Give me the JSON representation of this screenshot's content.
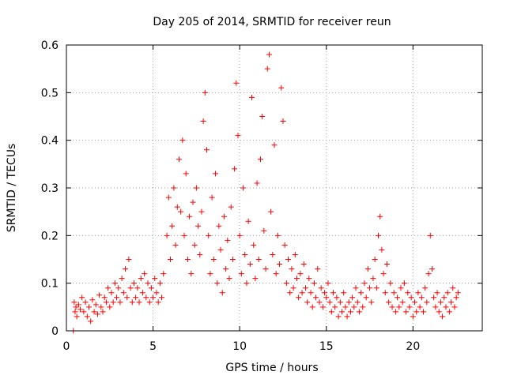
{
  "chart_data": {
    "type": "scatter",
    "title": "Day 205 of 2014, SRMTID for receiver reun",
    "xlabel": "GPS time / hours",
    "ylabel": "SRMTID / TECUs",
    "xlim": [
      0,
      24
    ],
    "ylim": [
      0,
      0.6
    ],
    "xticks": [
      0,
      5,
      10,
      15,
      20
    ],
    "xtick_labels": [
      "0",
      "5",
      "10",
      "15",
      "20"
    ],
    "yticks": [
      0,
      0.1,
      0.2,
      0.3,
      0.4,
      0.5,
      0.6
    ],
    "ytick_labels": [
      "0",
      "0.1",
      "0.2",
      "0.3",
      "0.4",
      "0.5",
      "0.6"
    ],
    "grid": true,
    "marker": "plus",
    "color": "#ff0000",
    "series": [
      {
        "name": "SRMTID",
        "points": [
          [
            0.4,
            0.0
          ],
          [
            0.45,
            0.06
          ],
          [
            0.5,
            0.04
          ],
          [
            0.55,
            0.05
          ],
          [
            0.6,
            0.03
          ],
          [
            0.7,
            0.055
          ],
          [
            0.8,
            0.045
          ],
          [
            0.9,
            0.07
          ],
          [
            1.0,
            0.04
          ],
          [
            1.1,
            0.06
          ],
          [
            1.2,
            0.03
          ],
          [
            1.3,
            0.05
          ],
          [
            1.4,
            0.02
          ],
          [
            1.5,
            0.065
          ],
          [
            1.6,
            0.04
          ],
          [
            1.7,
            0.055
          ],
          [
            1.8,
            0.035
          ],
          [
            1.9,
            0.075
          ],
          [
            2.0,
            0.05
          ],
          [
            2.1,
            0.04
          ],
          [
            2.2,
            0.07
          ],
          [
            2.3,
            0.06
          ],
          [
            2.4,
            0.09
          ],
          [
            2.5,
            0.05
          ],
          [
            2.6,
            0.08
          ],
          [
            2.7,
            0.06
          ],
          [
            2.8,
            0.1
          ],
          [
            2.9,
            0.07
          ],
          [
            3.0,
            0.09
          ],
          [
            3.1,
            0.06
          ],
          [
            3.2,
            0.11
          ],
          [
            3.3,
            0.08
          ],
          [
            3.4,
            0.13
          ],
          [
            3.5,
            0.07
          ],
          [
            3.6,
            0.15
          ],
          [
            3.7,
            0.09
          ],
          [
            3.8,
            0.06
          ],
          [
            3.9,
            0.1
          ],
          [
            4.0,
            0.07
          ],
          [
            4.1,
            0.09
          ],
          [
            4.2,
            0.06
          ],
          [
            4.3,
            0.11
          ],
          [
            4.4,
            0.08
          ],
          [
            4.5,
            0.12
          ],
          [
            4.6,
            0.07
          ],
          [
            4.7,
            0.1
          ],
          [
            4.8,
            0.06
          ],
          [
            4.9,
            0.09
          ],
          [
            5.0,
            0.07
          ],
          [
            5.1,
            0.11
          ],
          [
            5.2,
            0.08
          ],
          [
            5.3,
            0.06
          ],
          [
            5.4,
            0.1
          ],
          [
            5.5,
            0.07
          ],
          [
            5.6,
            0.12
          ],
          [
            5.8,
            0.2
          ],
          [
            5.9,
            0.28
          ],
          [
            6.0,
            0.15
          ],
          [
            6.1,
            0.22
          ],
          [
            6.2,
            0.3
          ],
          [
            6.3,
            0.18
          ],
          [
            6.4,
            0.26
          ],
          [
            6.5,
            0.36
          ],
          [
            6.6,
            0.25
          ],
          [
            6.7,
            0.4
          ],
          [
            6.8,
            0.2
          ],
          [
            6.9,
            0.33
          ],
          [
            7.0,
            0.15
          ],
          [
            7.1,
            0.24
          ],
          [
            7.2,
            0.12
          ],
          [
            7.3,
            0.27
          ],
          [
            7.4,
            0.18
          ],
          [
            7.5,
            0.3
          ],
          [
            7.6,
            0.22
          ],
          [
            7.7,
            0.16
          ],
          [
            7.8,
            0.25
          ],
          [
            7.9,
            0.44
          ],
          [
            8.0,
            0.5
          ],
          [
            8.1,
            0.38
          ],
          [
            8.2,
            0.2
          ],
          [
            8.3,
            0.12
          ],
          [
            8.4,
            0.28
          ],
          [
            8.5,
            0.15
          ],
          [
            8.6,
            0.33
          ],
          [
            8.7,
            0.1
          ],
          [
            8.8,
            0.22
          ],
          [
            8.9,
            0.17
          ],
          [
            9.0,
            0.08
          ],
          [
            9.1,
            0.24
          ],
          [
            9.2,
            0.13
          ],
          [
            9.3,
            0.19
          ],
          [
            9.4,
            0.11
          ],
          [
            9.5,
            0.26
          ],
          [
            9.6,
            0.15
          ],
          [
            9.7,
            0.34
          ],
          [
            9.8,
            0.52
          ],
          [
            9.9,
            0.41
          ],
          [
            10.0,
            0.2
          ],
          [
            10.1,
            0.12
          ],
          [
            10.2,
            0.3
          ],
          [
            10.3,
            0.16
          ],
          [
            10.4,
            0.1
          ],
          [
            10.5,
            0.23
          ],
          [
            10.6,
            0.14
          ],
          [
            10.7,
            0.49
          ],
          [
            10.8,
            0.18
          ],
          [
            10.9,
            0.11
          ],
          [
            11.0,
            0.31
          ],
          [
            11.1,
            0.15
          ],
          [
            11.2,
            0.36
          ],
          [
            11.3,
            0.45
          ],
          [
            11.4,
            0.21
          ],
          [
            11.5,
            0.13
          ],
          [
            11.6,
            0.55
          ],
          [
            11.7,
            0.58
          ],
          [
            11.8,
            0.25
          ],
          [
            11.9,
            0.16
          ],
          [
            12.0,
            0.39
          ],
          [
            12.1,
            0.12
          ],
          [
            12.2,
            0.2
          ],
          [
            12.3,
            0.14
          ],
          [
            12.4,
            0.51
          ],
          [
            12.5,
            0.44
          ],
          [
            12.6,
            0.18
          ],
          [
            12.7,
            0.1
          ],
          [
            12.8,
            0.15
          ],
          [
            12.9,
            0.08
          ],
          [
            13.0,
            0.13
          ],
          [
            13.1,
            0.09
          ],
          [
            13.2,
            0.16
          ],
          [
            13.3,
            0.11
          ],
          [
            13.4,
            0.07
          ],
          [
            13.5,
            0.12
          ],
          [
            13.6,
            0.08
          ],
          [
            13.7,
            0.14
          ],
          [
            13.8,
            0.09
          ],
          [
            13.9,
            0.06
          ],
          [
            14.0,
            0.11
          ],
          [
            14.1,
            0.08
          ],
          [
            14.2,
            0.05
          ],
          [
            14.3,
            0.1
          ],
          [
            14.4,
            0.07
          ],
          [
            14.5,
            0.13
          ],
          [
            14.6,
            0.06
          ],
          [
            14.7,
            0.09
          ],
          [
            14.8,
            0.05
          ],
          [
            14.9,
            0.08
          ],
          [
            15.0,
            0.07
          ],
          [
            15.1,
            0.1
          ],
          [
            15.2,
            0.06
          ],
          [
            15.3,
            0.04
          ],
          [
            15.4,
            0.08
          ],
          [
            15.5,
            0.05
          ],
          [
            15.6,
            0.07
          ],
          [
            15.7,
            0.03
          ],
          [
            15.8,
            0.06
          ],
          [
            15.9,
            0.04
          ],
          [
            16.0,
            0.08
          ],
          [
            16.1,
            0.05
          ],
          [
            16.2,
            0.03
          ],
          [
            16.3,
            0.06
          ],
          [
            16.4,
            0.04
          ],
          [
            16.5,
            0.07
          ],
          [
            16.6,
            0.05
          ],
          [
            16.7,
            0.09
          ],
          [
            16.8,
            0.06
          ],
          [
            16.9,
            0.04
          ],
          [
            17.0,
            0.08
          ],
          [
            17.1,
            0.05
          ],
          [
            17.2,
            0.1
          ],
          [
            17.3,
            0.07
          ],
          [
            17.4,
            0.13
          ],
          [
            17.5,
            0.09
          ],
          [
            17.6,
            0.06
          ],
          [
            17.7,
            0.11
          ],
          [
            17.8,
            0.15
          ],
          [
            17.9,
            0.09
          ],
          [
            18.0,
            0.2
          ],
          [
            18.1,
            0.24
          ],
          [
            18.2,
            0.17
          ],
          [
            18.3,
            0.12
          ],
          [
            18.4,
            0.08
          ],
          [
            18.5,
            0.14
          ],
          [
            18.6,
            0.06
          ],
          [
            18.7,
            0.1
          ],
          [
            18.8,
            0.05
          ],
          [
            18.9,
            0.08
          ],
          [
            19.0,
            0.04
          ],
          [
            19.1,
            0.07
          ],
          [
            19.2,
            0.05
          ],
          [
            19.3,
            0.09
          ],
          [
            19.4,
            0.06
          ],
          [
            19.5,
            0.1
          ],
          [
            19.6,
            0.04
          ],
          [
            19.7,
            0.08
          ],
          [
            19.8,
            0.05
          ],
          [
            19.9,
            0.07
          ],
          [
            20.0,
            0.03
          ],
          [
            20.1,
            0.06
          ],
          [
            20.2,
            0.04
          ],
          [
            20.3,
            0.08
          ],
          [
            20.4,
            0.05
          ],
          [
            20.5,
            0.07
          ],
          [
            20.6,
            0.04
          ],
          [
            20.7,
            0.09
          ],
          [
            20.8,
            0.06
          ],
          [
            20.9,
            0.12
          ],
          [
            21.0,
            0.2
          ],
          [
            21.1,
            0.13
          ],
          [
            21.2,
            0.07
          ],
          [
            21.3,
            0.05
          ],
          [
            21.4,
            0.08
          ],
          [
            21.5,
            0.04
          ],
          [
            21.6,
            0.06
          ],
          [
            21.7,
            0.03
          ],
          [
            21.8,
            0.07
          ],
          [
            21.9,
            0.05
          ],
          [
            22.0,
            0.08
          ],
          [
            22.1,
            0.04
          ],
          [
            22.2,
            0.06
          ],
          [
            22.3,
            0.09
          ],
          [
            22.4,
            0.05
          ],
          [
            22.5,
            0.07
          ],
          [
            22.6,
            0.08
          ]
        ]
      }
    ]
  }
}
